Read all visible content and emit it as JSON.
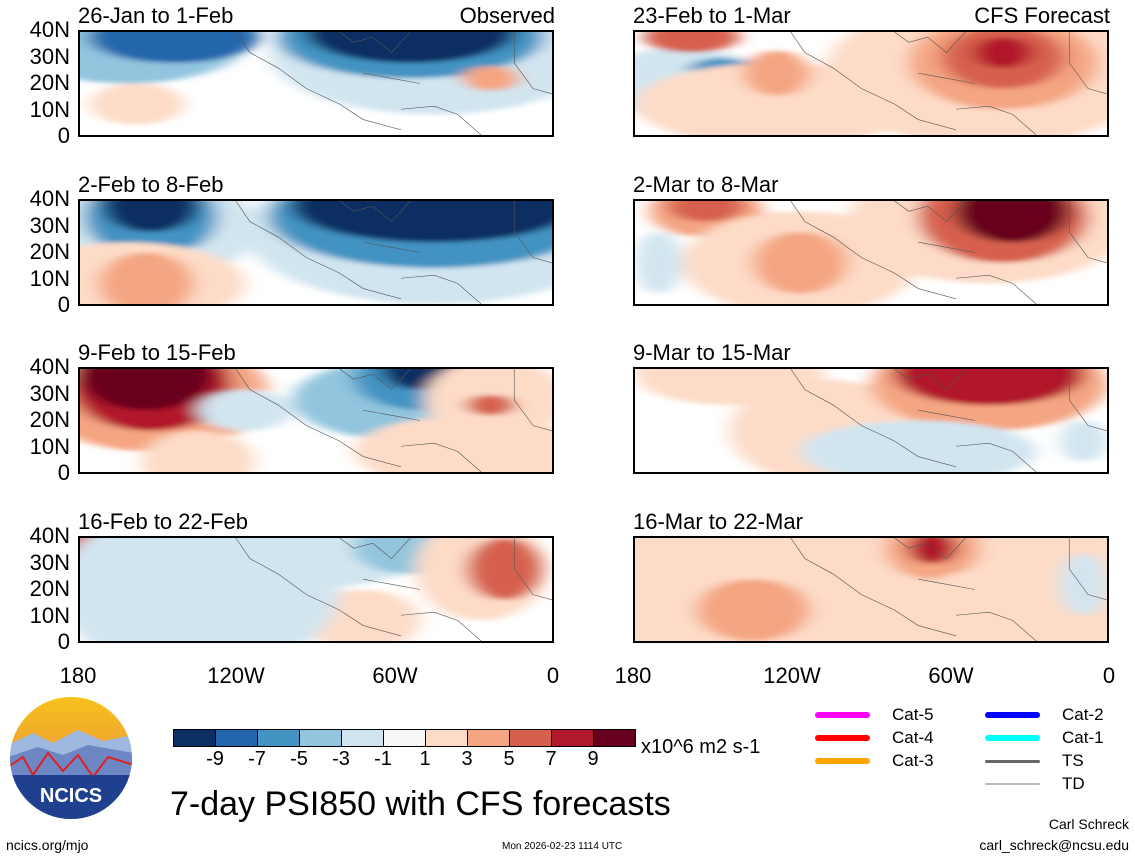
{
  "panels": [
    {
      "title": "26-Jan to 1-Feb",
      "label": "Observed"
    },
    {
      "title": "23-Feb to 1-Mar",
      "label": "CFS Forecast"
    },
    {
      "title": "2-Feb to 8-Feb"
    },
    {
      "title": "2-Mar to 8-Mar"
    },
    {
      "title": "9-Feb to 15-Feb"
    },
    {
      "title": "9-Mar to 15-Mar"
    },
    {
      "title": "16-Feb to 22-Feb"
    },
    {
      "title": "16-Mar to 22-Mar"
    }
  ],
  "y_ticks": [
    "40N",
    "30N",
    "20N",
    "10N",
    "0"
  ],
  "x_ticks": [
    "180",
    "120W",
    "60W",
    "0"
  ],
  "colorbar": {
    "colors": [
      "#0b2f62",
      "#2166ac",
      "#4393c3",
      "#92c5de",
      "#d1e5f0",
      "#f7f7f7",
      "#fddbc7",
      "#f4a582",
      "#d6604d",
      "#b2182b",
      "#67001f"
    ],
    "ticks": [
      "-9",
      "-7",
      "-5",
      "-3",
      "-1",
      "1",
      "3",
      "5",
      "7",
      "9"
    ],
    "units": "x10^6 m2 s-1"
  },
  "legend": [
    {
      "label": "Cat-5",
      "color": "#ff00ff"
    },
    {
      "label": "Cat-4",
      "color": "#ff0000"
    },
    {
      "label": "Cat-3",
      "color": "#ffa500"
    },
    {
      "label": "Cat-2",
      "color": "#0000ff"
    },
    {
      "label": "Cat-1",
      "color": "#00ffff"
    },
    {
      "label": "TS",
      "color": "#666666"
    },
    {
      "label": "TD",
      "color": "#bbbbbb"
    }
  ],
  "title": "7-day PSI850 with CFS forecasts",
  "logo_text": "NCICS",
  "footer": {
    "url": "ncics.org/mjo",
    "timestamp": "Mon 2026-02-23 1114 UTC",
    "author": "Carl Schreck",
    "email": "carl_schreck@ncsu.edu"
  }
}
